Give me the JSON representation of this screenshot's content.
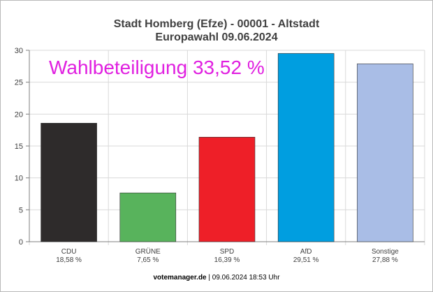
{
  "chart_data": {
    "type": "bar",
    "title": "Stadt Homberg (Efze) - 00001 - Altstadt",
    "subtitle": "Europawahl 09.06.2024",
    "annotation": {
      "text": "Wahlbeteiligung 33,52 %",
      "color": "#e020e0"
    },
    "categories": [
      "CDU",
      "GRÜNE",
      "SPD",
      "AfD",
      "Sonstige"
    ],
    "value_labels": [
      "18,58 %",
      "7,65 %",
      "16,39 %",
      "29,51 %",
      "27,88 %"
    ],
    "values": [
      18.58,
      7.65,
      16.39,
      29.51,
      27.88
    ],
    "colors": [
      "#2e2b2b",
      "#58b35c",
      "#ee1f28",
      "#009ee0",
      "#a9bde6"
    ],
    "ylim": [
      0,
      30
    ],
    "yticks": [
      0,
      5,
      10,
      15,
      20,
      25,
      30
    ],
    "grid": true,
    "legend": "none"
  },
  "footer": {
    "source": "votemanager.de",
    "timestamp": "| 09.06.2024 18:53 Uhr"
  }
}
